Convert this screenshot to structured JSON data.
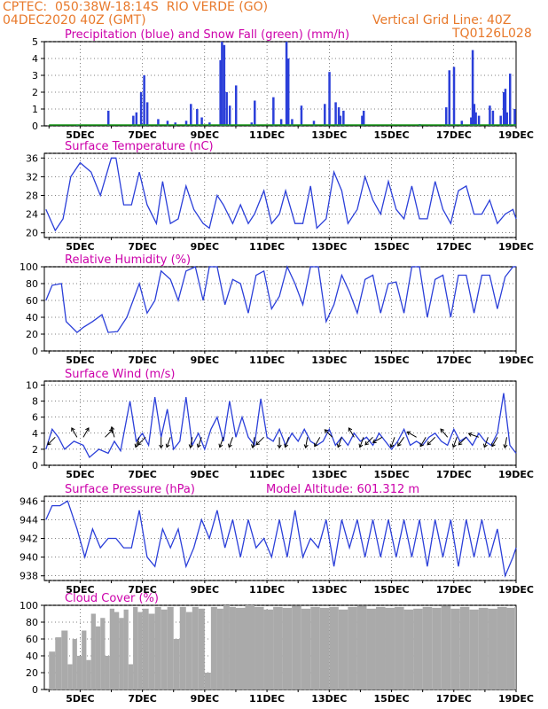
{
  "header": {
    "line1": "CPTEC:  050:38W-18:14S  RIO VERDE (GO)",
    "line2": "04DEC2020 40Z (GMT)",
    "grid_note": "Vertical Grid Line: 40Z",
    "code": "TQ0126L028"
  },
  "colors": {
    "header": "#e8792b",
    "title": "#cc00aa",
    "line": "#2b3fd9",
    "precip": "#2b3fd9",
    "snow": "#1a9a1a",
    "cloud": "#aaaaaa",
    "arrow": "#000000"
  },
  "x_ticks": [
    "5DEC",
    "7DEC",
    "9DEC",
    "11DEC",
    "13DEC",
    "15DEC",
    "17DEC",
    "19DEC"
  ],
  "chart_data": [
    {
      "id": "precip",
      "type": "bar",
      "title": "Precipitation (blue) and Snow Fall (green) (mm/h)",
      "ylim": [
        0,
        5
      ],
      "yticks": [
        "0",
        "1",
        "2",
        "3",
        "4",
        "5"
      ],
      "series": [
        {
          "name": "Precipitation",
          "x": [
            4.9,
            5.9,
            6.7,
            6.8,
            6.95,
            7.05,
            7.15,
            7.5,
            7.8,
            8.05,
            8.4,
            8.55,
            8.75,
            8.9,
            9.15,
            9.5,
            9.55,
            9.62,
            9.7,
            9.8,
            10.0,
            10.5,
            10.6,
            11.2,
            11.45,
            11.62,
            11.68,
            11.8,
            12.1,
            12.5,
            12.85,
            13.0,
            13.2,
            13.3,
            13.35,
            13.45,
            14.05,
            14.1,
            15.9,
            16.75,
            16.85,
            17.0,
            17.25,
            17.55,
            17.6,
            17.65,
            17.7,
            17.8,
            18.15,
            18.25,
            18.5,
            18.6,
            18.65,
            18.7,
            18.8,
            18.95
          ],
          "values": [
            0.05,
            0.9,
            0.6,
            0.8,
            2.0,
            3.0,
            1.4,
            0.4,
            0.3,
            0.2,
            0.3,
            1.3,
            1.0,
            0.5,
            0.2,
            3.9,
            5.0,
            4.8,
            2.0,
            1.2,
            2.4,
            0.2,
            1.5,
            1.7,
            0.4,
            5.0,
            4.0,
            0.4,
            1.2,
            0.3,
            1.3,
            3.2,
            1.4,
            1.1,
            0.6,
            0.9,
            0.6,
            0.9,
            0.1,
            1.1,
            3.3,
            3.5,
            0.3,
            0.5,
            4.5,
            1.3,
            0.8,
            0.6,
            1.2,
            0.9,
            0.6,
            2.0,
            2.2,
            0.8,
            3.1,
            1.0
          ]
        },
        {
          "name": "Snow Fall",
          "x": [
            4.0,
            19.0
          ],
          "values": [
            0,
            0
          ]
        }
      ]
    },
    {
      "id": "temp",
      "type": "line",
      "title": "Surface Temperature (nC)",
      "ylim": [
        19,
        37
      ],
      "yticks": [
        "20",
        "24",
        "28",
        "32",
        "36"
      ],
      "series": [
        {
          "name": "Surface Temperature",
          "x": [
            3.9,
            4.2,
            4.45,
            4.7,
            5.0,
            5.35,
            5.65,
            6.0,
            6.15,
            6.4,
            6.65,
            6.9,
            7.15,
            7.45,
            7.65,
            7.9,
            8.15,
            8.4,
            8.65,
            8.95,
            9.15,
            9.4,
            9.6,
            9.9,
            10.15,
            10.4,
            10.6,
            10.9,
            11.15,
            11.4,
            11.6,
            11.9,
            12.15,
            12.4,
            12.6,
            12.9,
            13.15,
            13.4,
            13.6,
            13.9,
            14.15,
            14.4,
            14.65,
            14.9,
            15.15,
            15.4,
            15.65,
            15.9,
            16.15,
            16.4,
            16.65,
            16.9,
            17.15,
            17.4,
            17.65,
            17.9,
            18.15,
            18.4,
            18.65,
            18.9,
            19.0
          ],
          "values": [
            25,
            20.5,
            23,
            32,
            35,
            33,
            28,
            36,
            36,
            26,
            26,
            33,
            26,
            22,
            31,
            22,
            23,
            30,
            25,
            22,
            21,
            28,
            26,
            22,
            26,
            22,
            24,
            29,
            22,
            24,
            29,
            22,
            22,
            30,
            21,
            23,
            33,
            29,
            22,
            25,
            32,
            27,
            24,
            31,
            25,
            23,
            30,
            23,
            23,
            31,
            25,
            22,
            29,
            30,
            24,
            24,
            27,
            22,
            24,
            25,
            23
          ]
        }
      ]
    },
    {
      "id": "rh",
      "type": "line",
      "title": "Relative Humidity (%)",
      "ylim": [
        0,
        100
      ],
      "yticks": [
        "0",
        "20",
        "40",
        "60",
        "80",
        "100"
      ],
      "series": [
        {
          "name": "Relative Humidity",
          "x": [
            3.9,
            4.1,
            4.4,
            4.55,
            4.9,
            5.1,
            5.4,
            5.7,
            5.9,
            6.2,
            6.5,
            6.9,
            7.15,
            7.4,
            7.6,
            7.9,
            8.15,
            8.4,
            8.7,
            8.95,
            9.15,
            9.4,
            9.65,
            9.9,
            10.15,
            10.4,
            10.65,
            10.9,
            11.15,
            11.4,
            11.65,
            11.9,
            12.15,
            12.4,
            12.65,
            12.9,
            13.15,
            13.4,
            13.65,
            13.9,
            14.15,
            14.4,
            14.65,
            14.9,
            15.15,
            15.4,
            15.65,
            15.9,
            16.15,
            16.4,
            16.65,
            16.9,
            17.15,
            17.4,
            17.65,
            17.9,
            18.15,
            18.4,
            18.65,
            18.9,
            19.0
          ],
          "values": [
            60,
            78,
            80,
            35,
            22,
            28,
            35,
            43,
            22,
            23,
            40,
            80,
            45,
            60,
            95,
            85,
            60,
            95,
            100,
            60,
            100,
            100,
            55,
            85,
            80,
            45,
            90,
            95,
            50,
            65,
            100,
            80,
            55,
            100,
            100,
            35,
            55,
            90,
            70,
            45,
            85,
            90,
            45,
            80,
            82,
            45,
            100,
            100,
            40,
            85,
            90,
            40,
            90,
            90,
            45,
            90,
            90,
            50,
            88,
            100,
            100
          ]
        }
      ]
    },
    {
      "id": "wind",
      "type": "line",
      "title": "Surface Wind (m/s)",
      "ylim": [
        0,
        10.5
      ],
      "yticks": [
        "0",
        "2",
        "4",
        "6",
        "8",
        "10"
      ],
      "series": [
        {
          "name": "Surface Wind",
          "x": [
            3.9,
            4.1,
            4.3,
            4.5,
            4.8,
            5.1,
            5.3,
            5.6,
            5.9,
            6.1,
            6.3,
            6.6,
            6.8,
            7.0,
            7.2,
            7.4,
            7.6,
            7.8,
            8.0,
            8.2,
            8.4,
            8.6,
            8.8,
            9.0,
            9.2,
            9.4,
            9.6,
            9.8,
            10.0,
            10.2,
            10.4,
            10.6,
            10.8,
            11.0,
            11.2,
            11.4,
            11.6,
            11.8,
            12.0,
            12.2,
            12.4,
            12.6,
            12.8,
            13.0,
            13.2,
            13.4,
            13.6,
            13.8,
            14.0,
            14.2,
            14.4,
            14.6,
            14.8,
            15.0,
            15.2,
            15.4,
            15.6,
            15.8,
            16.0,
            16.2,
            16.4,
            16.6,
            16.8,
            17.0,
            17.2,
            17.4,
            17.6,
            17.8,
            18.0,
            18.2,
            18.4,
            18.6,
            18.8,
            19.0
          ],
          "values": [
            2.0,
            4.5,
            3.5,
            2.0,
            3.0,
            2.5,
            1.0,
            2.0,
            1.5,
            3.0,
            1.8,
            8.0,
            3.0,
            4.0,
            2.5,
            8.5,
            3.5,
            7.0,
            2.0,
            3.0,
            8.5,
            2.5,
            4.0,
            2.0,
            4.5,
            6.0,
            3.0,
            8.0,
            3.5,
            6.0,
            3.5,
            2.5,
            8.3,
            3.5,
            3.0,
            4.5,
            2.5,
            4.0,
            3.0,
            4.5,
            3.0,
            2.5,
            3.0,
            4.5,
            2.5,
            3.5,
            2.5,
            4.0,
            3.0,
            3.5,
            2.5,
            4.0,
            3.0,
            2.0,
            3.0,
            4.5,
            2.5,
            3.0,
            2.5,
            3.5,
            4.0,
            3.0,
            2.5,
            4.5,
            3.0,
            3.5,
            2.5,
            4.0,
            3.0,
            2.5,
            4.0,
            9.0,
            2.5,
            1.5
          ]
        }
      ],
      "arrows": {
        "x": [
          4.2,
          4.9,
          5.1,
          5.8,
          6.1,
          6.9,
          7.1,
          7.6,
          7.9,
          8.6,
          8.9,
          9.6,
          9.9,
          10.6,
          10.9,
          11.4,
          11.7,
          12.3,
          12.7,
          13.1,
          13.4,
          13.8,
          14.1,
          14.4,
          14.7,
          15.1,
          15.4,
          15.8,
          16.1,
          16.4,
          16.8,
          17.1,
          17.4,
          17.8,
          18.1,
          18.4,
          18.7
        ],
        "dir": [
          225,
          330,
          30,
          45,
          345,
          200,
          225,
          180,
          200,
          190,
          200,
          200,
          200,
          190,
          225,
          180,
          200,
          190,
          210,
          315,
          200,
          330,
          200,
          225,
          240,
          200,
          215,
          300,
          210,
          225,
          320,
          200,
          225,
          290,
          200,
          210,
          190
        ]
      }
    },
    {
      "id": "pres",
      "type": "line",
      "title": "Surface Pressure (hPa)",
      "annotation": "Model Altitude: 601.312  m",
      "ylim": [
        937.5,
        946.5
      ],
      "yticks": [
        "938",
        "940",
        "942",
        "944",
        "946"
      ],
      "series": [
        {
          "name": "Surface Pressure",
          "x": [
            3.9,
            4.1,
            4.35,
            4.6,
            4.9,
            5.15,
            5.4,
            5.65,
            5.9,
            6.15,
            6.4,
            6.65,
            6.9,
            7.15,
            7.4,
            7.65,
            7.9,
            8.15,
            8.4,
            8.65,
            8.9,
            9.15,
            9.4,
            9.65,
            9.9,
            10.15,
            10.4,
            10.65,
            10.9,
            11.15,
            11.4,
            11.65,
            11.9,
            12.15,
            12.4,
            12.65,
            12.9,
            13.15,
            13.4,
            13.65,
            13.9,
            14.15,
            14.4,
            14.65,
            14.9,
            15.15,
            15.4,
            15.65,
            15.9,
            16.15,
            16.4,
            16.65,
            16.9,
            17.15,
            17.4,
            17.65,
            17.9,
            18.15,
            18.4,
            18.65,
            18.9,
            19.0
          ],
          "values": [
            944,
            945.5,
            945.5,
            946,
            943,
            940,
            943,
            941,
            942,
            942,
            941,
            941,
            945,
            940,
            939,
            943,
            941,
            943,
            939,
            941,
            944,
            942,
            945,
            941,
            944,
            940,
            944,
            941,
            942,
            940,
            944,
            940,
            945,
            940,
            942,
            941,
            944,
            939,
            944,
            941,
            944,
            940,
            944,
            940,
            944,
            940,
            944,
            940,
            944,
            939,
            944,
            940,
            944,
            939,
            944,
            940,
            944,
            940,
            943,
            938,
            940,
            941
          ]
        }
      ]
    },
    {
      "id": "cloud",
      "type": "bar",
      "title": "Cloud Cover (%)",
      "ylim": [
        0,
        100
      ],
      "yticks": [
        "0",
        "20",
        "40",
        "60",
        "80",
        "100"
      ],
      "series": [
        {
          "name": "Cloud Cover",
          "x": [
            4.0,
            4.2,
            4.4,
            4.6,
            4.75,
            4.9,
            5.05,
            5.2,
            5.35,
            5.5,
            5.65,
            5.8,
            5.95,
            6.1,
            6.25,
            6.4,
            6.55,
            6.7,
            6.85,
            7.0,
            7.2,
            7.4,
            7.6,
            7.8,
            8.0,
            8.2,
            8.4,
            8.6,
            8.8,
            9.0,
            9.2,
            9.4,
            9.6,
            9.8,
            10.0,
            10.3,
            10.6,
            10.9,
            11.2,
            11.5,
            11.8,
            12.1,
            12.4,
            12.7,
            13.0,
            13.3,
            13.6,
            13.9,
            14.2,
            14.5,
            14.8,
            15.1,
            15.4,
            15.7,
            16.0,
            16.3,
            16.6,
            16.9,
            17.2,
            17.5,
            17.8,
            18.1,
            18.4,
            18.7,
            18.95
          ],
          "values": [
            45,
            62,
            70,
            30,
            60,
            40,
            70,
            35,
            90,
            75,
            85,
            40,
            96,
            92,
            85,
            95,
            30,
            98,
            92,
            96,
            90,
            98,
            95,
            98,
            60,
            98,
            92,
            98,
            96,
            20,
            98,
            96,
            100,
            98,
            97,
            100,
            98,
            95,
            98,
            97,
            99,
            96,
            98,
            97,
            98,
            95,
            98,
            99,
            96,
            98,
            97,
            98,
            95,
            96,
            98,
            97,
            99,
            96,
            98,
            95,
            97,
            96,
            98,
            97,
            98
          ]
        }
      ]
    }
  ]
}
